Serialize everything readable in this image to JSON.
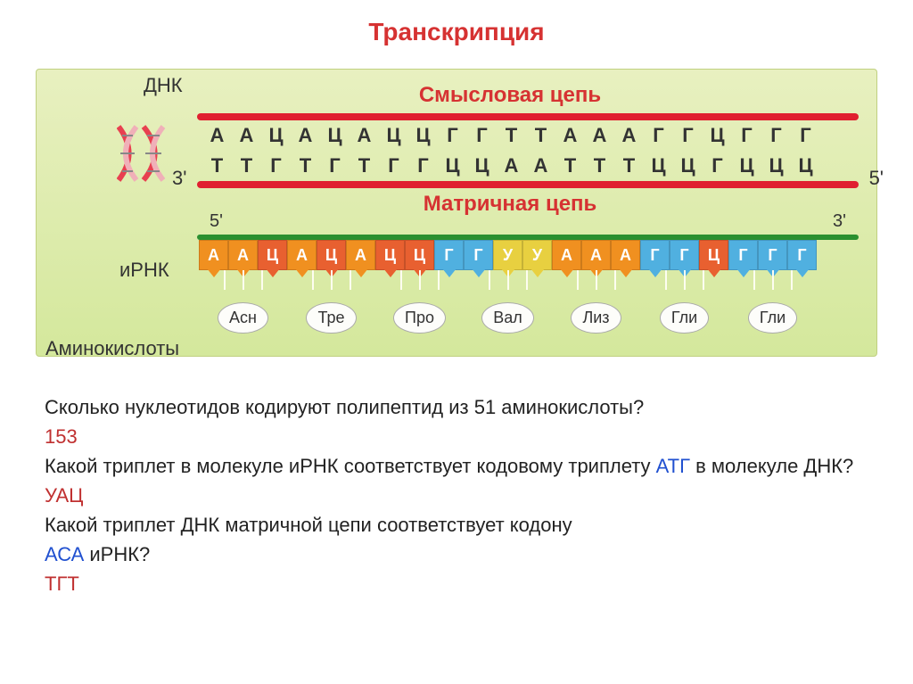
{
  "title": "Транскрипция",
  "labels": {
    "dnk": "ДНК",
    "sense": "Смысловая цепь",
    "template": "Матричная цепь",
    "irnk": "иРНК",
    "aa": "Аминокислоты",
    "three": "3'",
    "five": "5'"
  },
  "strand_colors": {
    "dna_bar": "#e02030",
    "mrna_bar": "#2a9030",
    "helix_outer": "#e84050",
    "helix_inner": "#f0b0b8"
  },
  "sense_seq": [
    "А",
    "А",
    "Ц",
    "А",
    "Ц",
    "А",
    "Ц",
    "Ц",
    "Г",
    "Г",
    "Т",
    "Т",
    "А",
    "А",
    "А",
    "Г",
    "Г",
    "Ц",
    "Г",
    "Г",
    "Г"
  ],
  "template_seq": [
    "Т",
    "Т",
    "Г",
    "Т",
    "Г",
    "Т",
    "Г",
    "Г",
    "Ц",
    "Ц",
    "А",
    "А",
    "Т",
    "Т",
    "Т",
    "Ц",
    "Ц",
    "Г",
    "Ц",
    "Ц",
    "Ц"
  ],
  "mrna": [
    {
      "b": "А",
      "c": "#f09020"
    },
    {
      "b": "А",
      "c": "#f09020"
    },
    {
      "b": "Ц",
      "c": "#e86030"
    },
    {
      "b": "А",
      "c": "#f09020"
    },
    {
      "b": "Ц",
      "c": "#e86030"
    },
    {
      "b": "А",
      "c": "#f09020"
    },
    {
      "b": "Ц",
      "c": "#e86030"
    },
    {
      "b": "Ц",
      "c": "#e86030"
    },
    {
      "b": "Г",
      "c": "#50b0e0"
    },
    {
      "b": "Г",
      "c": "#50b0e0"
    },
    {
      "b": "У",
      "c": "#e8d040"
    },
    {
      "b": "У",
      "c": "#e8d040"
    },
    {
      "b": "А",
      "c": "#f09020"
    },
    {
      "b": "А",
      "c": "#f09020"
    },
    {
      "b": "А",
      "c": "#f09020"
    },
    {
      "b": "Г",
      "c": "#50b0e0"
    },
    {
      "b": "Г",
      "c": "#50b0e0"
    },
    {
      "b": "Ц",
      "c": "#e86030"
    },
    {
      "b": "Г",
      "c": "#50b0e0"
    },
    {
      "b": "Г",
      "c": "#50b0e0"
    },
    {
      "b": "Г",
      "c": "#50b0e0"
    }
  ],
  "amino_acids": [
    "Асн",
    "Тре",
    "Про",
    "Вал",
    "Лиз",
    "Гли",
    "Гли"
  ],
  "questions": {
    "q1": "Сколько нуклеотидов кодируют полипептид из 51 аминокислоты?",
    "a1": "153",
    "q2a": "Какой триплет в молекуле иРНК соответствует кодовому триплету ",
    "q2_triplet": "АТГ",
    "q2b": " в молекуле ДНК?",
    "a2": "УАЦ",
    "q3": "Какой триплет ДНК матричной цепи соответствует кодону",
    "q3_codon": "АСА",
    "q3_tail": " иРНК?",
    "a3": "ТГТ"
  },
  "diagram_bg": {
    "from": "#e8f0c0",
    "to": "#d4e89c"
  },
  "fonts": {
    "title_size": 28,
    "label_size": 22,
    "nuc_size": 22,
    "q_size": 22
  }
}
